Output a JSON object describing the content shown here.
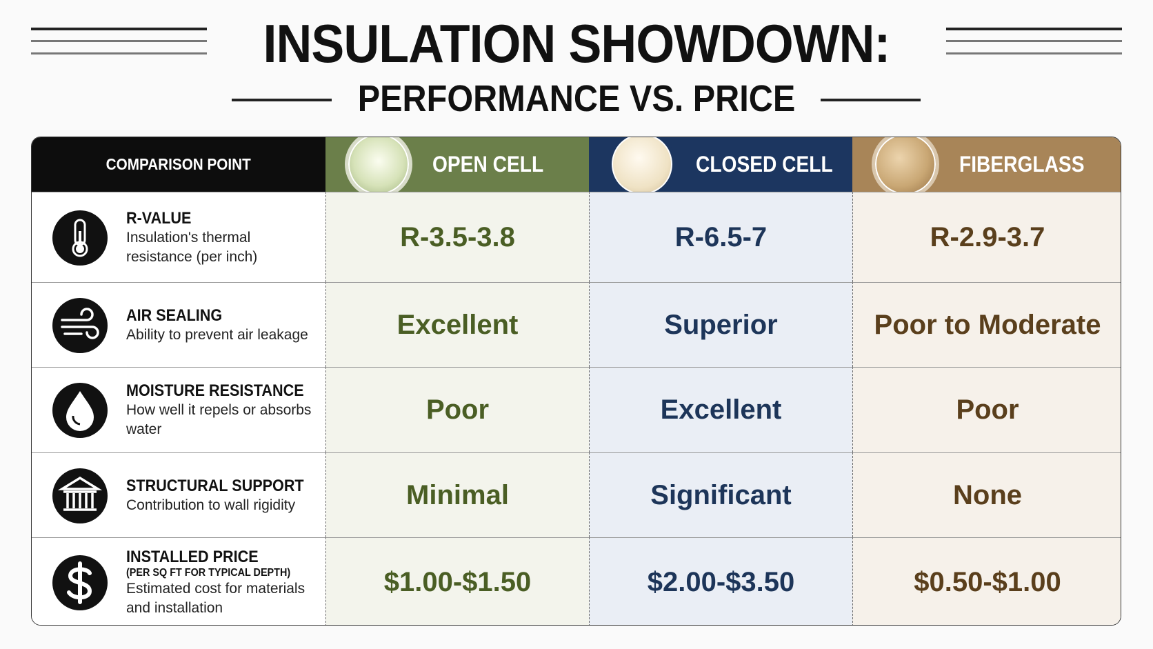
{
  "header": {
    "title": "INSULATION SHOWDOWN:",
    "subtitle": "PERFORMANCE VS. PRICE"
  },
  "table": {
    "header_label": "COMPARISON POINT",
    "columns": [
      "OPEN CELL",
      "CLOSED CELL",
      "FIBERGLASS"
    ],
    "rows": [
      {
        "label": "R-VALUE",
        "description": "Insulation's thermal resistance (per inch)",
        "values": [
          "R-3.5-3.8",
          "R-6.5-7",
          "R-2.9-3.7"
        ]
      },
      {
        "label": "AIR SEALING",
        "description": "Ability to prevent air leakage",
        "values": [
          "Excellent",
          "Superior",
          "Poor to Moderate"
        ]
      },
      {
        "label": "MOISTURE RESISTANCE",
        "description": "How well it repels or absorbs water",
        "values": [
          "Poor",
          "Excellent",
          "Poor"
        ]
      },
      {
        "label": "STRUCTURAL SUPPORT",
        "description": "Contribution to wall rigidity",
        "values": [
          "Minimal",
          "Significant",
          "None"
        ]
      },
      {
        "label": "INSTALLED PRICE",
        "note": "(PER SQ FT FOR TYPICAL DEPTH)",
        "description": "Estimated cost for materials and installation",
        "values": [
          "$1.00-$1.50",
          "$2.00-$3.50",
          "$0.50-$1.00"
        ]
      }
    ]
  }
}
